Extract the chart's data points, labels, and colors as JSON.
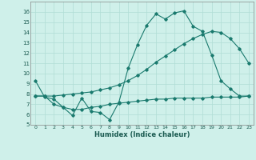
{
  "xlabel": "Humidex (Indice chaleur)",
  "xlim": [
    -0.5,
    23.5
  ],
  "ylim": [
    5,
    17
  ],
  "xticks": [
    0,
    1,
    2,
    3,
    4,
    5,
    6,
    7,
    8,
    9,
    10,
    11,
    12,
    13,
    14,
    15,
    16,
    17,
    18,
    19,
    20,
    21,
    22,
    23
  ],
  "yticks": [
    5,
    6,
    7,
    8,
    9,
    10,
    11,
    12,
    13,
    14,
    15,
    16
  ],
  "bg_color": "#cff0ea",
  "grid_color": "#b0ddd5",
  "line_color": "#1a7a6e",
  "line1_x": [
    0,
    1,
    2,
    3,
    4,
    5,
    6,
    7,
    8,
    9,
    10,
    11,
    12,
    13,
    14,
    15,
    16,
    17,
    18,
    19,
    20,
    21,
    22,
    23
  ],
  "line1_y": [
    9.3,
    7.7,
    7.5,
    6.7,
    5.9,
    7.6,
    6.3,
    6.2,
    5.5,
    7.2,
    10.5,
    12.8,
    14.7,
    15.8,
    15.3,
    15.9,
    16.1,
    14.6,
    14.1,
    11.8,
    9.3,
    8.5,
    7.8,
    7.8
  ],
  "line2_x": [
    0,
    1,
    2,
    3,
    4,
    5,
    6,
    7,
    8,
    9,
    10,
    11,
    12,
    13,
    14,
    15,
    16,
    17,
    18,
    19,
    20,
    21,
    22,
    23
  ],
  "line2_y": [
    7.8,
    7.8,
    7.8,
    7.9,
    8.0,
    8.1,
    8.2,
    8.4,
    8.6,
    8.9,
    9.3,
    9.8,
    10.4,
    11.1,
    11.7,
    12.3,
    12.9,
    13.4,
    13.8,
    14.1,
    14.0,
    13.4,
    12.4,
    11.0
  ],
  "line3_x": [
    0,
    1,
    2,
    3,
    4,
    5,
    6,
    7,
    8,
    9,
    10,
    11,
    12,
    13,
    14,
    15,
    16,
    17,
    18,
    19,
    20,
    21,
    22,
    23
  ],
  "line3_y": [
    7.8,
    7.8,
    7.0,
    6.7,
    6.5,
    6.5,
    6.7,
    6.8,
    7.0,
    7.1,
    7.2,
    7.3,
    7.4,
    7.5,
    7.5,
    7.6,
    7.6,
    7.6,
    7.6,
    7.7,
    7.7,
    7.7,
    7.7,
    7.8
  ]
}
